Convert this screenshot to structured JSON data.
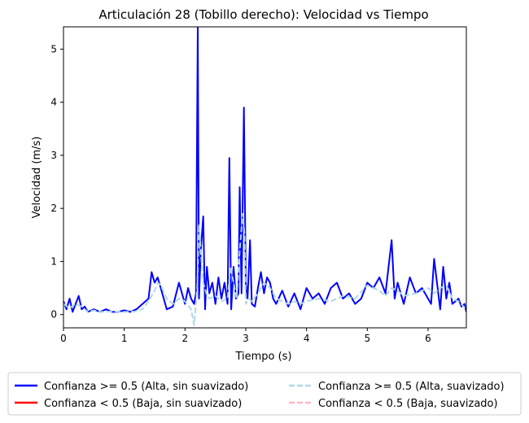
{
  "chart_data": {
    "type": "line",
    "title": "Articulación 28 (Tobillo derecho): Velocidad vs Tiempo",
    "xlabel": "Tiempo (s)",
    "ylabel": "Velocidad (m/s)",
    "xlim": [
      0,
      6.63
    ],
    "ylim": [
      -0.25,
      5.42
    ],
    "x_ticks": [
      0,
      1,
      2,
      3,
      4,
      5,
      6
    ],
    "x_tick_labels": [
      "0",
      "1",
      "2",
      "3",
      "4",
      "5",
      "6"
    ],
    "y_ticks": [
      0,
      1,
      2,
      3,
      4,
      5
    ],
    "y_tick_labels": [
      "0",
      "1",
      "2",
      "3",
      "4",
      "5"
    ],
    "grid": false,
    "legend_position": "bottom-center (below axes), 2 columns",
    "series": [
      {
        "name": "Confianza >= 0.5 (Alta, sin suavizado)",
        "color": "#0000ff",
        "style": "solid",
        "x": [
          0.0,
          0.05,
          0.1,
          0.15,
          0.2,
          0.25,
          0.3,
          0.35,
          0.4,
          0.5,
          0.6,
          0.7,
          0.8,
          0.9,
          1.0,
          1.1,
          1.2,
          1.3,
          1.4,
          1.45,
          1.5,
          1.55,
          1.6,
          1.65,
          1.7,
          1.8,
          1.9,
          2.0,
          2.05,
          2.1,
          2.15,
          2.18,
          2.21,
          2.23,
          2.26,
          2.3,
          2.33,
          2.36,
          2.4,
          2.45,
          2.5,
          2.55,
          2.6,
          2.65,
          2.7,
          2.73,
          2.76,
          2.8,
          2.84,
          2.88,
          2.9,
          2.93,
          2.97,
          3.0,
          3.03,
          3.07,
          3.1,
          3.15,
          3.2,
          3.25,
          3.3,
          3.35,
          3.4,
          3.45,
          3.5,
          3.6,
          3.7,
          3.8,
          3.9,
          4.0,
          4.1,
          4.2,
          4.3,
          4.4,
          4.5,
          4.6,
          4.7,
          4.8,
          4.9,
          5.0,
          5.1,
          5.2,
          5.3,
          5.4,
          5.45,
          5.5,
          5.6,
          5.7,
          5.8,
          5.9,
          6.0,
          6.05,
          6.1,
          6.2,
          6.25,
          6.3,
          6.35,
          6.4,
          6.5,
          6.55,
          6.6,
          6.63
        ],
        "y": [
          0.25,
          0.1,
          0.3,
          0.05,
          0.2,
          0.35,
          0.1,
          0.15,
          0.05,
          0.1,
          0.05,
          0.1,
          0.05,
          0.05,
          0.08,
          0.05,
          0.1,
          0.2,
          0.3,
          0.8,
          0.6,
          0.7,
          0.5,
          0.3,
          0.1,
          0.15,
          0.6,
          0.2,
          0.5,
          0.3,
          0.2,
          0.4,
          5.4,
          0.3,
          1.2,
          1.85,
          0.1,
          0.9,
          0.4,
          0.6,
          0.2,
          0.7,
          0.3,
          0.6,
          0.2,
          2.95,
          0.1,
          0.9,
          0.3,
          0.4,
          2.4,
          0.4,
          3.9,
          0.6,
          0.3,
          1.4,
          0.2,
          0.15,
          0.5,
          0.8,
          0.4,
          0.7,
          0.6,
          0.3,
          0.2,
          0.45,
          0.15,
          0.4,
          0.1,
          0.5,
          0.3,
          0.4,
          0.2,
          0.5,
          0.6,
          0.3,
          0.4,
          0.2,
          0.3,
          0.6,
          0.5,
          0.7,
          0.4,
          1.4,
          0.3,
          0.6,
          0.2,
          0.7,
          0.4,
          0.5,
          0.3,
          0.2,
          1.05,
          0.1,
          0.9,
          0.3,
          0.6,
          0.2,
          0.3,
          0.15,
          0.2,
          0.05
        ]
      },
      {
        "name": "Confianza < 0.5 (Baja, sin suavizado)",
        "color": "#ff0000",
        "style": "solid",
        "x": [],
        "y": []
      },
      {
        "name": "Confianza >= 0.5 (Alta, suavizado)",
        "color": "#add8e6",
        "style": "dashed",
        "x": [
          0.0,
          0.1,
          0.2,
          0.3,
          0.4,
          0.5,
          0.6,
          0.8,
          1.0,
          1.2,
          1.3,
          1.4,
          1.5,
          1.55,
          1.6,
          1.7,
          1.8,
          1.9,
          2.0,
          2.1,
          2.15,
          2.2,
          2.23,
          2.26,
          2.3,
          2.35,
          2.4,
          2.5,
          2.6,
          2.7,
          2.75,
          2.8,
          2.85,
          2.9,
          2.95,
          2.98,
          3.0,
          3.05,
          3.1,
          3.2,
          3.3,
          3.4,
          3.5,
          3.6,
          3.7,
          3.8,
          3.9,
          4.0,
          4.2,
          4.4,
          4.6,
          4.8,
          5.0,
          5.1,
          5.2,
          5.3,
          5.4,
          5.5,
          5.6,
          5.8,
          6.0,
          6.1,
          6.2,
          6.3,
          6.4,
          6.5,
          6.63
        ],
        "y": [
          0.2,
          0.12,
          0.2,
          0.15,
          0.05,
          0.08,
          0.05,
          0.06,
          0.05,
          0.06,
          0.1,
          0.25,
          0.45,
          0.6,
          0.55,
          0.3,
          0.2,
          0.3,
          0.25,
          0.1,
          -0.2,
          0.5,
          1.7,
          1.2,
          0.6,
          0.4,
          0.3,
          0.35,
          0.25,
          0.3,
          0.9,
          0.6,
          0.3,
          1.2,
          1.9,
          1.5,
          0.2,
          0.3,
          0.25,
          0.4,
          0.6,
          0.5,
          0.3,
          0.25,
          0.2,
          0.25,
          0.2,
          0.25,
          0.3,
          0.25,
          0.35,
          0.3,
          0.55,
          0.5,
          0.45,
          0.35,
          0.5,
          0.45,
          0.35,
          0.4,
          0.5,
          0.4,
          0.5,
          0.55,
          0.3,
          0.25,
          0.1
        ]
      },
      {
        "name": "Confianza < 0.5 (Baja, suavizado)",
        "color": "#ffb6c1",
        "style": "dashed",
        "x": [],
        "y": []
      }
    ]
  }
}
